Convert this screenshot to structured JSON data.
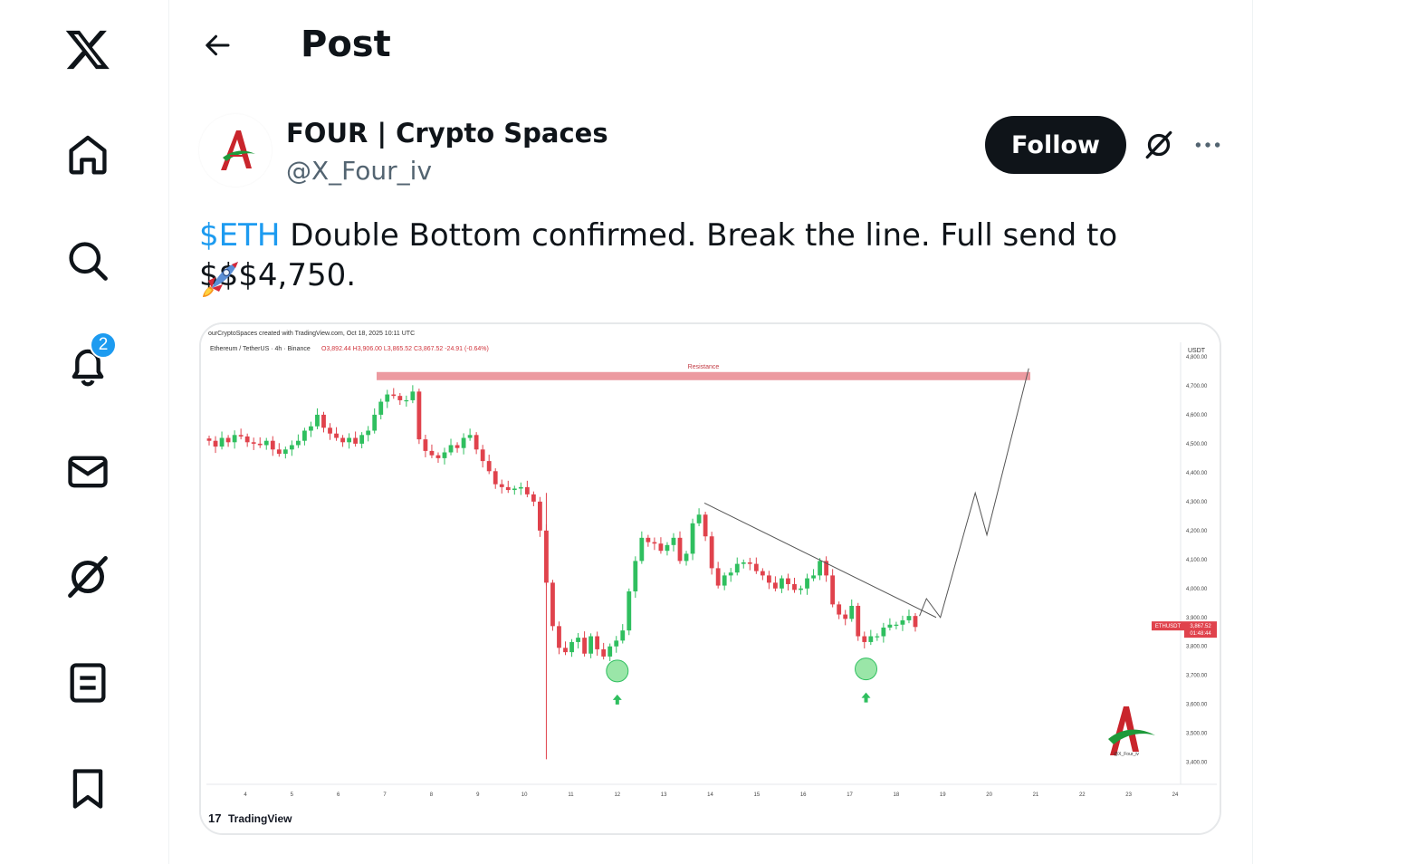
{
  "nav": {
    "items": [
      {
        "name": "x-logo",
        "icon": "x-logo-icon"
      },
      {
        "name": "home",
        "icon": "home-icon"
      },
      {
        "name": "explore",
        "icon": "search-icon"
      },
      {
        "name": "notifications",
        "icon": "bell-icon",
        "badge": "2"
      },
      {
        "name": "messages",
        "icon": "mail-icon"
      },
      {
        "name": "grok",
        "icon": "grok-icon"
      },
      {
        "name": "lists",
        "icon": "list-icon"
      },
      {
        "name": "bookmarks",
        "icon": "bookmark-icon"
      }
    ]
  },
  "header": {
    "title": "Post",
    "back_icon": "arrow-left-icon"
  },
  "post": {
    "author_name": "FOUR | Crypto Spaces",
    "author_handle": "@X_Four_iv",
    "follow_label": "Follow",
    "cashtag": "$ETH",
    "text": " Double Bottom confirmed. Break the line. Full send to $$$4,750.",
    "emoji": "rocket-icon"
  },
  "chart": {
    "credit": "ourCryptoSpaces created with TradingView.com, Oct 18, 2025 10:11 UTC",
    "ohlc_symbol": "Ethereum / TetherUS · 4h · Binance",
    "ohlc_values": "O3,892.44  H3,906.00  L3,865.52  C3,867.52  -24.91 (-0.64%)",
    "currency": "USDT",
    "resistance_label": "Resistance",
    "price_tag_symbol": "ETHUSDT",
    "price_tag_price": "3,867.52",
    "price_tag_time": "01:48:44",
    "watermark_handle": "@X_Four_iv",
    "brand": "TradingView"
  },
  "chart_data": {
    "type": "candlestick",
    "symbol": "ETHUSDT",
    "ylim": [
      3330,
      4850
    ],
    "y_ticks": [
      "4,800.00",
      "4,700.00",
      "4,600.00",
      "4,500.00",
      "4,400.00",
      "4,300.00",
      "4,200.00",
      "4,100.00",
      "4,000.00",
      "3,900.00",
      "3,800.00",
      "3,700.00",
      "3,600.00",
      "3,500.00",
      "3,400.00"
    ],
    "y_tick_values": [
      4800,
      4700,
      4600,
      4500,
      4400,
      4300,
      4200,
      4100,
      4000,
      3900,
      3800,
      3700,
      3600,
      3500,
      3400
    ],
    "x_ticks": [
      "4",
      "5",
      "6",
      "7",
      "8",
      "9",
      "10",
      "11",
      "12",
      "13",
      "14",
      "15",
      "16",
      "17",
      "18",
      "19",
      "20",
      "21",
      "22",
      "23",
      "24"
    ],
    "resistance_level": 4735,
    "bottoms": [
      {
        "day": 12.0,
        "price": 3715
      },
      {
        "day": 17.35,
        "price": 3722
      }
    ],
    "candles_4h_closes": [
      4510,
      4490,
      4520,
      4505,
      4530,
      4525,
      4505,
      4500,
      4495,
      4510,
      4480,
      4465,
      4480,
      4495,
      4510,
      4545,
      4560,
      4600,
      4555,
      4535,
      4520,
      4505,
      4520,
      4500,
      4530,
      4545,
      4600,
      4645,
      4670,
      4665,
      4650,
      4650,
      4680,
      4515,
      4475,
      4460,
      4450,
      4470,
      4495,
      4485,
      4520,
      4530,
      4480,
      4440,
      4405,
      4360,
      4350,
      4340,
      4345,
      4350,
      4325,
      4300,
      4200,
      4020,
      3870,
      3795,
      3780,
      3815,
      3830,
      3775,
      3835,
      3790,
      3765,
      3800,
      3820,
      3855,
      3990,
      4095,
      4175,
      4160,
      4155,
      4130,
      4150,
      4175,
      4095,
      4120,
      4225,
      4255,
      4180,
      4070,
      4010,
      4045,
      4055,
      4085,
      4090,
      4085,
      4060,
      4045,
      4020,
      4000,
      4035,
      4015,
      3995,
      4000,
      4035,
      4045,
      4095,
      4045,
      3945,
      3910,
      3895,
      3940,
      3835,
      3815,
      3835,
      3835,
      3865,
      3875,
      3875,
      3890,
      3905,
      3867
    ],
    "projection": [
      [
        18.95,
        3900
      ],
      [
        19.7,
        4330
      ],
      [
        19.95,
        4185
      ],
      [
        20.85,
        4760
      ]
    ]
  }
}
